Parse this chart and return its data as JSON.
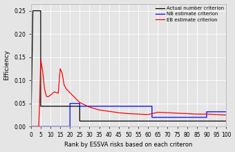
{
  "title": "",
  "xlabel": "Rank by ESSVA risks based on each criteron",
  "ylabel": "Efficiency",
  "xlim": [
    0,
    100
  ],
  "ylim": [
    0.0,
    0.265
  ],
  "yticks": [
    0.0,
    0.05,
    0.1,
    0.15,
    0.2,
    0.25
  ],
  "xticks": [
    0,
    5,
    10,
    15,
    20,
    25,
    30,
    35,
    40,
    45,
    50,
    55,
    60,
    65,
    70,
    75,
    80,
    85,
    90,
    95,
    100
  ],
  "background_color": "#e5e5e5",
  "grid_color": "#ffffff",
  "legend_labels": [
    "Actual number criterion",
    "NB estimate criterion",
    "EB estimate criterion"
  ],
  "legend_colors": [
    "black",
    "blue",
    "red"
  ],
  "black_x": [
    0,
    1,
    2,
    3,
    4,
    5,
    5.01,
    25,
    25.01,
    100
  ],
  "black_y": [
    0.0,
    0.25,
    0.25,
    0.25,
    0.25,
    0.25,
    0.044,
    0.044,
    0.012,
    0.012
  ],
  "blue_x": [
    0,
    20,
    20.01,
    25,
    25.01,
    62,
    62.01,
    90,
    90.01,
    100
  ],
  "blue_y": [
    0.0,
    0.0,
    0.05,
    0.05,
    0.044,
    0.044,
    0.02,
    0.02,
    0.032,
    0.032
  ],
  "red_x": [
    0,
    4,
    4.5,
    5,
    6,
    7,
    8,
    9,
    10,
    12,
    14,
    15,
    16,
    17,
    18,
    20,
    25,
    30,
    35,
    40,
    45,
    50,
    55,
    60,
    65,
    70,
    75,
    80,
    85,
    90,
    95,
    100
  ],
  "red_y": [
    0.0,
    0.0,
    0.06,
    0.145,
    0.12,
    0.08,
    0.065,
    0.065,
    0.068,
    0.075,
    0.072,
    0.125,
    0.115,
    0.09,
    0.082,
    0.073,
    0.052,
    0.042,
    0.036,
    0.033,
    0.03,
    0.028,
    0.027,
    0.026,
    0.031,
    0.03,
    0.029,
    0.028,
    0.027,
    0.027,
    0.026,
    0.025
  ]
}
